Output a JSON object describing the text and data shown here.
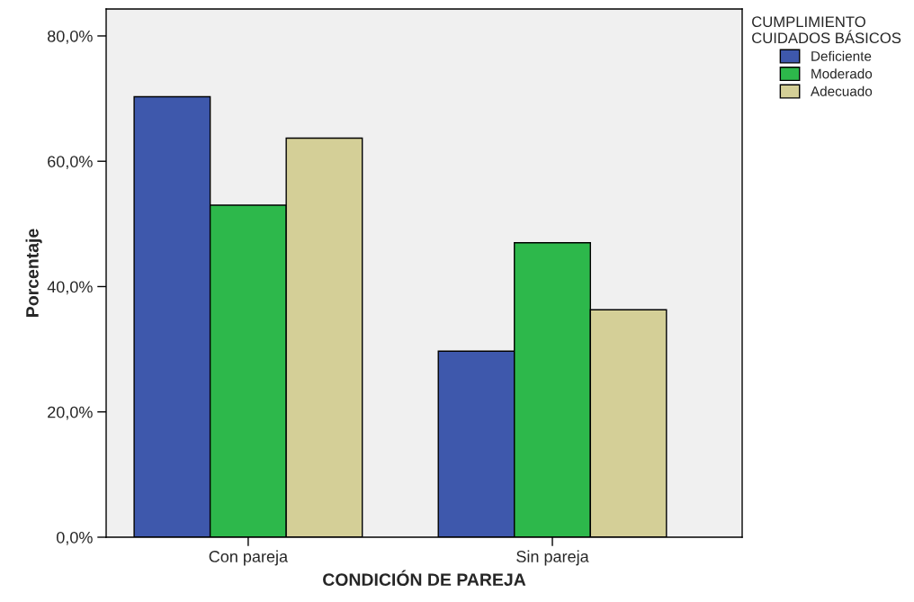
{
  "chart_data": {
    "type": "bar",
    "xlabel": "CONDICIÓN DE PAREJA",
    "ylabel": "Porcentaje",
    "legend_title": "CUMPLIMIENTO\nCUIDADOS BÁSICOS",
    "categories": [
      "Con pareja",
      "Sin pareja"
    ],
    "series": [
      {
        "name": "Deficiente",
        "color": "#3e58ac",
        "values": [
          70.3,
          29.7
        ]
      },
      {
        "name": "Moderado",
        "color": "#2db84b",
        "values": [
          53.0,
          47.0
        ]
      },
      {
        "name": "Adecuado",
        "color": "#d4cf97",
        "values": [
          63.7,
          36.3
        ]
      }
    ],
    "ylim": [
      0,
      84.3
    ],
    "yticks": [
      {
        "value": 0,
        "label": "0,0%"
      },
      {
        "value": 20,
        "label": "20,0%"
      },
      {
        "value": 40,
        "label": "40,0%"
      },
      {
        "value": 60,
        "label": "60,0%"
      },
      {
        "value": 80,
        "label": "80,0%"
      }
    ],
    "grid": false,
    "legend": "top right"
  }
}
